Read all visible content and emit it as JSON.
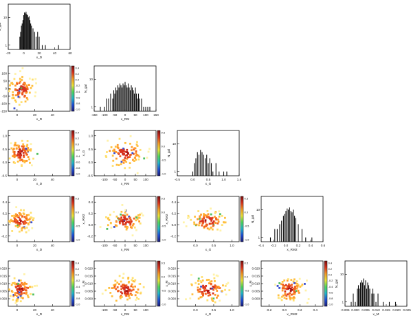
{
  "colors": {
    "bar_fill": "#111111",
    "frame": "#000000",
    "colormap": [
      "#1e1e78",
      "#1f4fd6",
      "#22b7c9",
      "#4fd65c",
      "#e9e33a",
      "#f29a26",
      "#d8321e",
      "#7a1010"
    ]
  },
  "chart_data": {
    "type": "corner-plot",
    "variables": [
      "x_D",
      "x_RM",
      "x_G",
      "x_RM2",
      "x_M"
    ],
    "axis_labels": {
      "x_D": "x_D",
      "x_RM": "x_RM",
      "x_G": "x_G",
      "x_RM2": "x_RM2",
      "x_M": "x_M",
      "N": "N_gal"
    },
    "histograms": [
      {
        "variable": "x_D",
        "xlim": [
          -20,
          60
        ],
        "x_ticks": [
          "-20",
          "0",
          "20",
          "40",
          "60"
        ],
        "y_scale": "log",
        "y_ticks": [
          "1",
          "10"
        ],
        "bins": [
          [
            -5,
            2
          ],
          [
            -4,
            3
          ],
          [
            -3,
            5
          ],
          [
            -2,
            6
          ],
          [
            -1,
            8
          ],
          [
            0,
            12
          ],
          [
            1,
            15
          ],
          [
            2,
            14
          ],
          [
            3,
            16
          ],
          [
            4,
            13
          ],
          [
            5,
            12
          ],
          [
            6,
            10
          ],
          [
            7,
            11
          ],
          [
            8,
            8
          ],
          [
            9,
            6
          ],
          [
            10,
            5
          ],
          [
            12,
            4
          ],
          [
            14,
            3
          ],
          [
            16,
            2
          ],
          [
            18,
            3
          ],
          [
            20,
            2
          ],
          [
            24,
            1
          ],
          [
            28,
            1
          ],
          [
            45,
            1
          ]
        ]
      },
      {
        "variable": "x_RM",
        "xlim": [
          -150,
          150
        ],
        "x_ticks": [
          "-150",
          "-100",
          "-50",
          "0",
          "50",
          "100",
          "150"
        ],
        "y_scale": "log",
        "y_ticks": [
          "1",
          "10"
        ],
        "bins": [
          [
            -120,
            1
          ],
          [
            -100,
            1
          ],
          [
            -90,
            2
          ],
          [
            -80,
            2
          ],
          [
            -70,
            3
          ],
          [
            -60,
            2
          ],
          [
            -55,
            4
          ],
          [
            -50,
            3
          ],
          [
            -45,
            5
          ],
          [
            -40,
            4
          ],
          [
            -35,
            6
          ],
          [
            -30,
            5
          ],
          [
            -25,
            7
          ],
          [
            -20,
            6
          ],
          [
            -15,
            5
          ],
          [
            -10,
            7
          ],
          [
            -5,
            6
          ],
          [
            0,
            8
          ],
          [
            5,
            6
          ],
          [
            10,
            5
          ],
          [
            15,
            7
          ],
          [
            20,
            5
          ],
          [
            25,
            4
          ],
          [
            30,
            6
          ],
          [
            35,
            5
          ],
          [
            40,
            4
          ],
          [
            45,
            3
          ],
          [
            50,
            5
          ],
          [
            55,
            3
          ],
          [
            60,
            2
          ],
          [
            65,
            3
          ],
          [
            70,
            2
          ],
          [
            80,
            2
          ],
          [
            90,
            1
          ],
          [
            100,
            1
          ],
          [
            110,
            1
          ],
          [
            120,
            1
          ]
        ]
      },
      {
        "variable": "x_G",
        "xlim": [
          -0.5,
          1.5
        ],
        "x_ticks": [
          "-0.5",
          "0.0",
          "0.5",
          "1.0",
          "1.5"
        ],
        "y_scale": "log",
        "y_ticks": [
          "1",
          "10"
        ],
        "bins": [
          [
            0.0,
            1
          ],
          [
            0.05,
            2
          ],
          [
            0.1,
            3
          ],
          [
            0.15,
            5
          ],
          [
            0.2,
            4
          ],
          [
            0.25,
            6
          ],
          [
            0.3,
            5
          ],
          [
            0.35,
            4
          ],
          [
            0.4,
            3
          ],
          [
            0.45,
            4
          ],
          [
            0.5,
            2
          ],
          [
            0.55,
            3
          ],
          [
            0.6,
            2
          ],
          [
            0.65,
            1
          ],
          [
            0.75,
            2
          ],
          [
            0.85,
            1
          ],
          [
            1.0,
            1
          ],
          [
            1.1,
            1
          ]
        ]
      },
      {
        "variable": "x_RM2",
        "xlim": [
          -0.4,
          0.6
        ],
        "x_ticks": [
          "-0.4",
          "-0.2",
          "0.0",
          "0.2",
          "0.4",
          "0.6"
        ],
        "y_scale": "log",
        "y_ticks": [
          "1",
          "10"
        ],
        "bins": [
          [
            -0.25,
            1
          ],
          [
            -0.18,
            2
          ],
          [
            -0.14,
            2
          ],
          [
            -0.1,
            3
          ],
          [
            -0.07,
            4
          ],
          [
            -0.04,
            6
          ],
          [
            -0.02,
            7
          ],
          [
            0.0,
            9
          ],
          [
            0.02,
            11
          ],
          [
            0.04,
            10
          ],
          [
            0.06,
            12
          ],
          [
            0.08,
            9
          ],
          [
            0.1,
            8
          ],
          [
            0.12,
            10
          ],
          [
            0.14,
            6
          ],
          [
            0.16,
            5
          ],
          [
            0.2,
            3
          ],
          [
            0.26,
            2
          ],
          [
            0.32,
            1
          ],
          [
            0.42,
            1
          ]
        ]
      },
      {
        "variable": "x_M",
        "xlim": [
          -0.005,
          0.025
        ],
        "x_ticks": [
          "-0.005",
          "0.000",
          "0.005",
          "0.010",
          "0.015",
          "0.020",
          "0.025"
        ],
        "y_scale": "log",
        "y_ticks": [
          "1",
          "10"
        ],
        "bins": [
          [
            -0.002,
            1
          ],
          [
            -0.001,
            2
          ],
          [
            0.0,
            1
          ],
          [
            0.001,
            3
          ],
          [
            0.0015,
            4
          ],
          [
            0.002,
            3
          ],
          [
            0.0025,
            5
          ],
          [
            0.003,
            6
          ],
          [
            0.0035,
            5
          ],
          [
            0.004,
            7
          ],
          [
            0.0045,
            4
          ],
          [
            0.005,
            6
          ],
          [
            0.0055,
            3
          ],
          [
            0.006,
            5
          ],
          [
            0.0065,
            4
          ],
          [
            0.007,
            3
          ],
          [
            0.008,
            2
          ],
          [
            0.0085,
            3
          ],
          [
            0.009,
            2
          ],
          [
            0.01,
            1
          ],
          [
            0.011,
            2
          ],
          [
            0.0135,
            1
          ],
          [
            0.0165,
            1
          ],
          [
            0.0195,
            1
          ]
        ]
      }
    ],
    "density_panels": [
      {
        "row": 1,
        "col": 0,
        "x": "x_D",
        "y": "x_RM",
        "xlim": [
          -10,
          60
        ],
        "ylim": [
          -150,
          150
        ],
        "x_ticks": [
          "0",
          "20",
          "40"
        ],
        "y_ticks": [
          "-150",
          "-100",
          "-50",
          "0",
          "50",
          "100"
        ],
        "colorbar_ticks": [
          "0.4",
          "0.2",
          "0.0",
          "-0.2",
          "-0.4",
          "-0.6",
          "-0.8",
          "-1.0"
        ],
        "center": [
          5,
          -5
        ],
        "spread": [
          7,
          45
        ],
        "seed": 11
      },
      {
        "row": 2,
        "col": 0,
        "x": "x_D",
        "y": "x_G",
        "xlim": [
          -10,
          60
        ],
        "ylim": [
          -0.5,
          1.2
        ],
        "x_ticks": [
          "0",
          "20",
          "40"
        ],
        "y_ticks": [
          "-0.5",
          "0.0",
          "0.5",
          "1.0"
        ],
        "colorbar_ticks": [
          "0.4",
          "0.2",
          "0.0",
          "-0.2",
          "-0.4",
          "-0.6",
          "-0.8",
          "-1.0"
        ],
        "center": [
          4,
          0.35
        ],
        "spread": [
          7,
          0.25
        ],
        "seed": 21
      },
      {
        "row": 2,
        "col": 1,
        "x": "x_RM",
        "y": "x_G",
        "xlim": [
          -150,
          150
        ],
        "ylim": [
          -0.5,
          1.2
        ],
        "x_ticks": [
          "-100",
          "-50",
          "0",
          "50",
          "100"
        ],
        "y_ticks": [
          "-0.5",
          "0.0",
          "0.5",
          "1.0"
        ],
        "colorbar_ticks": [
          "0.5",
          "0.0",
          "-0.5",
          "-1.0"
        ],
        "center": [
          0,
          0.35
        ],
        "spread": [
          45,
          0.25
        ],
        "seed": 22
      },
      {
        "row": 3,
        "col": 0,
        "x": "x_D",
        "y": "x_RM2",
        "xlim": [
          -10,
          60
        ],
        "ylim": [
          -0.3,
          0.5
        ],
        "x_ticks": [
          "0",
          "20",
          "40"
        ],
        "y_ticks": [
          "-0.2",
          "0.0",
          "0.2",
          "0.4"
        ],
        "colorbar_ticks": [
          "0.5",
          "0.0",
          "-0.5",
          "-1.0"
        ],
        "center": [
          4,
          0.07
        ],
        "spread": [
          7,
          0.09
        ],
        "seed": 31
      },
      {
        "row": 3,
        "col": 1,
        "x": "x_RM",
        "y": "x_RM2",
        "xlim": [
          -150,
          150
        ],
        "ylim": [
          -0.3,
          0.5
        ],
        "x_ticks": [
          "-100",
          "-50",
          "0",
          "50",
          "100"
        ],
        "y_ticks": [
          "-0.2",
          "0.0",
          "0.2",
          "0.4"
        ],
        "colorbar_ticks": [
          "0.5",
          "0.0",
          "-0.5",
          "-1.0"
        ],
        "center": [
          0,
          0.07
        ],
        "spread": [
          45,
          0.09
        ],
        "seed": 32
      },
      {
        "row": 3,
        "col": 2,
        "x": "x_G",
        "y": "x_RM2",
        "xlim": [
          -0.5,
          1.2
        ],
        "ylim": [
          -0.3,
          0.5
        ],
        "x_ticks": [
          "0.0",
          "0.5",
          "1.0"
        ],
        "y_ticks": [
          "-0.2",
          "0.0",
          "0.2",
          "0.4"
        ],
        "colorbar_ticks": [
          "0.5",
          "0.0",
          "-0.5",
          "-1.0"
        ],
        "center": [
          0.35,
          0.07
        ],
        "spread": [
          0.25,
          0.09
        ],
        "seed": 33
      },
      {
        "row": 4,
        "col": 0,
        "x": "x_D",
        "y": "x_M",
        "xlim": [
          -10,
          60
        ],
        "ylim": [
          -0.005,
          0.025
        ],
        "x_ticks": [
          "0",
          "20",
          "40"
        ],
        "y_ticks": [
          "0.000",
          "0.005",
          "0.010",
          "0.015",
          "0.020"
        ],
        "colorbar_ticks": [
          "0.4",
          "0.2",
          "0.0",
          "-0.2",
          "-0.4",
          "-0.6",
          "-0.8",
          "-1.0"
        ],
        "center": [
          4,
          0.006
        ],
        "spread": [
          7,
          0.004
        ],
        "seed": 41
      },
      {
        "row": 4,
        "col": 1,
        "x": "x_RM",
        "y": "x_M",
        "xlim": [
          -150,
          150
        ],
        "ylim": [
          -0.005,
          0.025
        ],
        "x_ticks": [
          "-100",
          "-50",
          "0",
          "50",
          "100"
        ],
        "y_ticks": [
          "0.000",
          "0.005",
          "0.010",
          "0.015",
          "0.020"
        ],
        "colorbar_ticks": [
          "0.5",
          "0.0",
          "-0.5",
          "-1.0"
        ],
        "center": [
          0,
          0.006
        ],
        "spread": [
          45,
          0.004
        ],
        "seed": 42
      },
      {
        "row": 4,
        "col": 2,
        "x": "x_G",
        "y": "x_M",
        "xlim": [
          -0.5,
          1.2
        ],
        "ylim": [
          -0.005,
          0.025
        ],
        "x_ticks": [
          "0.0",
          "0.5",
          "1.0"
        ],
        "y_ticks": [
          "0.000",
          "0.005",
          "0.010",
          "0.015",
          "0.020"
        ],
        "colorbar_ticks": [
          "0.5",
          "0.0",
          "-0.5",
          "-1.0"
        ],
        "center": [
          0.35,
          0.006
        ],
        "spread": [
          0.25,
          0.004
        ],
        "seed": 43
      },
      {
        "row": 4,
        "col": 3,
        "x": "x_RM2",
        "y": "x_M",
        "xlim": [
          -0.3,
          0.5
        ],
        "ylim": [
          -0.005,
          0.025
        ],
        "x_ticks": [
          "-0.2",
          "0.0",
          "0.2",
          "0.4"
        ],
        "y_ticks": [
          "0.000",
          "0.005",
          "0.010",
          "0.015",
          "0.020"
        ],
        "colorbar_ticks": [
          "0.4",
          "0.2",
          "0.0",
          "-0.2",
          "-0.4",
          "-0.6",
          "-0.8",
          "-1.0"
        ],
        "center": [
          0.07,
          0.006
        ],
        "spread": [
          0.09,
          0.004
        ],
        "seed": 44
      }
    ]
  }
}
